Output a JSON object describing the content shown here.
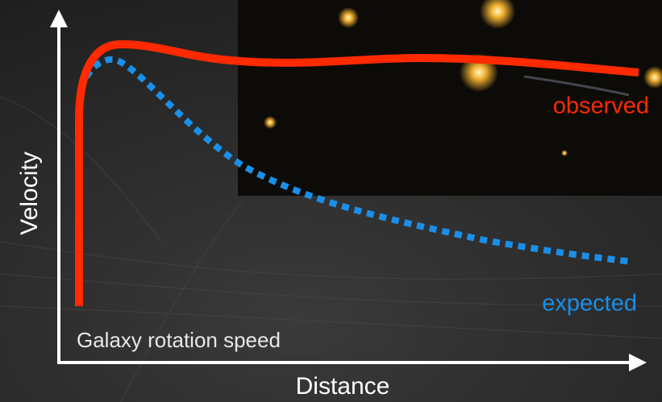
{
  "diagram": {
    "caption": "Galaxy rotation speed",
    "y_axis_label": "Velocity",
    "x_axis_label": "Distance",
    "curves": [
      {
        "label": "observed"
      },
      {
        "label": "expected"
      }
    ]
  }
}
